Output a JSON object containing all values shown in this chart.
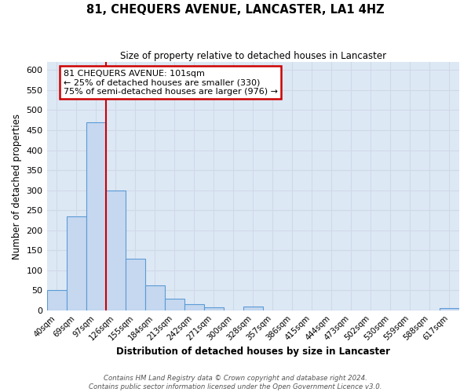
{
  "title": "81, CHEQUERS AVENUE, LANCASTER, LA1 4HZ",
  "subtitle": "Size of property relative to detached houses in Lancaster",
  "xlabel": "Distribution of detached houses by size in Lancaster",
  "ylabel": "Number of detached properties",
  "bar_values": [
    50,
    235,
    470,
    300,
    130,
    62,
    30,
    15,
    8,
    0,
    10,
    0,
    0,
    0,
    0,
    0,
    0,
    0,
    0,
    0,
    5
  ],
  "bin_labels": [
    "40sqm",
    "69sqm",
    "97sqm",
    "126sqm",
    "155sqm",
    "184sqm",
    "213sqm",
    "242sqm",
    "271sqm",
    "300sqm",
    "328sqm",
    "357sqm",
    "386sqm",
    "415sqm",
    "444sqm",
    "473sqm",
    "502sqm",
    "530sqm",
    "559sqm",
    "588sqm",
    "617sqm"
  ],
  "bar_color": "#c5d8f0",
  "bar_edge_color": "#5b9bd5",
  "ylim": [
    0,
    620
  ],
  "yticks": [
    0,
    50,
    100,
    150,
    200,
    250,
    300,
    350,
    400,
    450,
    500,
    550,
    600
  ],
  "red_line_x": 2.5,
  "annotation_title": "81 CHEQUERS AVENUE: 101sqm",
  "annotation_line1": "← 25% of detached houses are smaller (330)",
  "annotation_line2": "75% of semi-detached houses are larger (976) →",
  "annotation_box_color": "#ffffff",
  "annotation_box_edge_color": "#cc0000",
  "red_line_color": "#cc0000",
  "grid_color": "#d0d8e8",
  "background_color": "#dde8f5",
  "footnote1": "Contains HM Land Registry data © Crown copyright and database right 2024.",
  "footnote2": "Contains public sector information licensed under the Open Government Licence v3.0."
}
